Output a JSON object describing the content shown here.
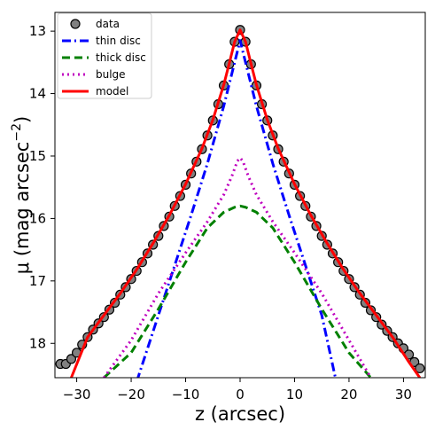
{
  "chart_data": {
    "type": "line",
    "xlabel": "z (arcsec)",
    "ylabel": "μ (mag arcsec",
    "ylabel_sup": "−2",
    "ylabel_close": ")",
    "xlim": [
      -34,
      34
    ],
    "ylim": [
      18.55,
      12.7
    ],
    "y_inverted": true,
    "xticks": [
      -30,
      -20,
      -10,
      0,
      10,
      20,
      30
    ],
    "xtick_labels": [
      "−30",
      "−20",
      "−10",
      "0",
      "10",
      "20",
      "30"
    ],
    "yticks": [
      13,
      14,
      15,
      16,
      17,
      18
    ],
    "ytick_labels": [
      "13",
      "14",
      "15",
      "16",
      "17",
      "18"
    ],
    "grid": false,
    "legend_position": "top-left",
    "series": [
      {
        "name": "data",
        "style": "markers",
        "color": "#808080",
        "edge": "#000000",
        "x": [
          -33,
          -32,
          -31,
          -30,
          -29,
          -28,
          -27,
          -26,
          -25,
          -24,
          -23,
          -22,
          -21,
          -20,
          -19,
          -18,
          -17,
          -16,
          -15,
          -14,
          -13,
          -12,
          -11,
          -10,
          -9,
          -8,
          -7,
          -6,
          -5,
          -4,
          -3,
          -2,
          -1,
          0,
          1,
          2,
          3,
          4,
          5,
          6,
          7,
          8,
          9,
          10,
          11,
          12,
          13,
          14,
          15,
          16,
          17,
          18,
          19,
          20,
          21,
          22,
          23,
          24,
          25,
          26,
          27,
          28,
          29,
          30,
          31,
          32,
          33
        ],
        "y": [
          18.33,
          18.33,
          18.25,
          18.15,
          18.02,
          17.9,
          17.78,
          17.68,
          17.58,
          17.46,
          17.35,
          17.22,
          17.1,
          16.97,
          16.84,
          16.7,
          16.56,
          16.42,
          16.28,
          16.12,
          15.97,
          15.8,
          15.64,
          15.46,
          15.28,
          15.09,
          14.89,
          14.67,
          14.43,
          14.17,
          13.87,
          13.53,
          13.17,
          12.98,
          13.17,
          13.53,
          13.87,
          14.17,
          14.43,
          14.67,
          14.89,
          15.09,
          15.28,
          15.46,
          15.64,
          15.8,
          15.97,
          16.12,
          16.28,
          16.42,
          16.56,
          16.7,
          16.84,
          16.97,
          17.1,
          17.22,
          17.35,
          17.47,
          17.58,
          17.7,
          17.8,
          17.9,
          18.0,
          18.08,
          18.18,
          18.3,
          18.4
        ]
      },
      {
        "name": "thin disc",
        "style": "dashdot",
        "color": "#0000ff",
        "x": [
          -21,
          -18,
          -15,
          -12,
          -9,
          -6,
          -3,
          0,
          3,
          6,
          9,
          12,
          15,
          17.5
        ],
        "y": [
          19.15,
          18.35,
          17.55,
          16.75,
          15.95,
          15.12,
          14.2,
          13.15,
          14.2,
          15.12,
          15.95,
          16.75,
          17.55,
          18.55
        ]
      },
      {
        "name": "thick disc",
        "style": "dashed",
        "color": "#008000",
        "x": [
          -25,
          -20,
          -15,
          -10,
          -6,
          -3,
          -1,
          0,
          1,
          3,
          6,
          10,
          15,
          20,
          24
        ],
        "y": [
          18.55,
          18.15,
          17.45,
          16.7,
          16.15,
          15.9,
          15.82,
          15.8,
          15.82,
          15.9,
          16.15,
          16.7,
          17.45,
          18.15,
          18.55
        ]
      },
      {
        "name": "bulge",
        "style": "dotted",
        "color": "#bf00bf",
        "x": [
          -25,
          -20,
          -15,
          -10,
          -6,
          -3,
          -1.5,
          -0.5,
          0,
          0.5,
          1.5,
          3,
          6,
          10,
          15,
          20,
          24
        ],
        "y": [
          18.55,
          17.95,
          17.2,
          16.55,
          16.05,
          15.62,
          15.32,
          15.08,
          15.03,
          15.08,
          15.32,
          15.62,
          16.05,
          16.55,
          17.2,
          17.95,
          18.55
        ]
      },
      {
        "name": "model",
        "style": "solid",
        "color": "#ff0000",
        "x": [
          -31,
          -28,
          -25,
          -22,
          -19,
          -16,
          -13,
          -10,
          -7,
          -5,
          -3,
          -2,
          -1,
          0,
          1,
          2,
          3,
          5,
          7,
          10,
          13,
          16,
          19,
          22,
          25,
          28,
          31,
          33
        ],
        "y": [
          18.55,
          17.9,
          17.55,
          17.2,
          16.82,
          16.4,
          15.95,
          15.45,
          14.88,
          14.42,
          13.86,
          13.52,
          13.17,
          12.98,
          13.17,
          13.52,
          13.86,
          14.42,
          14.88,
          15.45,
          15.95,
          16.4,
          16.82,
          17.2,
          17.55,
          17.9,
          18.3,
          18.55
        ]
      }
    ]
  }
}
